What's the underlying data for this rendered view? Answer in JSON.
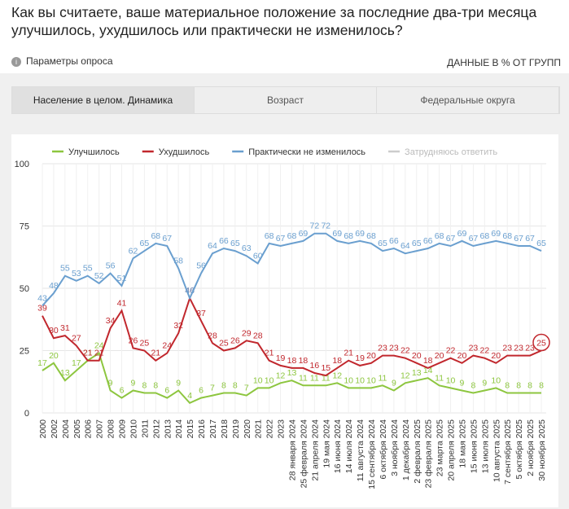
{
  "header": {
    "title": "Как вы считаете, ваше материальное положение за последние два-три месяца улучшилось, ухудшилось или практически не изменилось?",
    "params": "Параметры опроса",
    "units_note": "ДАННЫЕ В % ОТ ГРУПП"
  },
  "tabs": [
    "Население в целом. Динамика",
    "Возраст",
    "Федеральные округа"
  ],
  "chart_data": {
    "type": "line",
    "categories": [
      "2000",
      "2002",
      "2004",
      "2005",
      "2006",
      "2007",
      "2008",
      "2009",
      "2010",
      "2011",
      "2012",
      "2013",
      "2014",
      "2015",
      "2016",
      "2017",
      "2018",
      "2019",
      "2020",
      "2021",
      "2022",
      "2023",
      "28 января 2024",
      "25 февраля 2024",
      "21 апреля 2024",
      "19 мая 2024",
      "16 июня 2024",
      "14 июля 2024",
      "11 августа 2024",
      "15 сентября 2024",
      "6 октября 2024",
      "3 ноября 2024",
      "1 декабря 2024",
      "2 февраля 2025",
      "23 февраля 2025",
      "23 марта 2025",
      "20 апреля 2025",
      "18 мая 2025",
      "15 июня 2025",
      "13 июля 2025",
      "10 августа 2025",
      "7 сентября 2025",
      "5 октября 2025",
      "2 ноября 2025",
      "30 ноября 2025"
    ],
    "series": [
      {
        "name": "Улучшилось",
        "color": "#8dc63f",
        "values": [
          17,
          20,
          13,
          17,
          21,
          24,
          9,
          6,
          9,
          8,
          8,
          6,
          9,
          4,
          6,
          7,
          8,
          8,
          7,
          10,
          10,
          12,
          13,
          11,
          11,
          11,
          12,
          10,
          10,
          10,
          11,
          9,
          12,
          13,
          14,
          11,
          10,
          9,
          8,
          9,
          10,
          8,
          8,
          8,
          8
        ]
      },
      {
        "name": "Ухудшилось",
        "color": "#c1272d",
        "values": [
          39,
          30,
          31,
          27,
          21,
          21,
          34,
          41,
          26,
          25,
          21,
          24,
          32,
          46,
          37,
          28,
          25,
          26,
          29,
          28,
          21,
          19,
          18,
          18,
          16,
          15,
          18,
          21,
          19,
          20,
          23,
          23,
          22,
          20,
          18,
          20,
          22,
          20,
          23,
          22,
          20,
          23,
          23,
          23,
          25
        ]
      },
      {
        "name": "Практически не изменилось",
        "color": "#6a9fcf",
        "values": [
          43,
          48,
          55,
          53,
          55,
          52,
          56,
          51,
          62,
          65,
          68,
          67,
          58,
          46,
          56,
          64,
          66,
          65,
          63,
          60,
          68,
          67,
          68,
          69,
          72,
          72,
          69,
          68,
          69,
          68,
          65,
          66,
          64,
          65,
          66,
          68,
          67,
          69,
          67,
          68,
          69,
          68,
          67,
          67,
          65
        ]
      },
      {
        "name": "Затрудняюсь ответить",
        "color": "#cccccc",
        "values": [
          null,
          null,
          null,
          null,
          null,
          null,
          null,
          null,
          null,
          null,
          null,
          null,
          null,
          null,
          null,
          null,
          null,
          null,
          null,
          null,
          null,
          null,
          null,
          null,
          null,
          null,
          null,
          null,
          null,
          null,
          null,
          null,
          null,
          null,
          null,
          null,
          null,
          null,
          null,
          null,
          null,
          null,
          null,
          null,
          null
        ]
      }
    ],
    "ylim": [
      0,
      100
    ],
    "yticks": [
      0,
      25,
      50,
      75,
      100
    ],
    "grid": true
  }
}
